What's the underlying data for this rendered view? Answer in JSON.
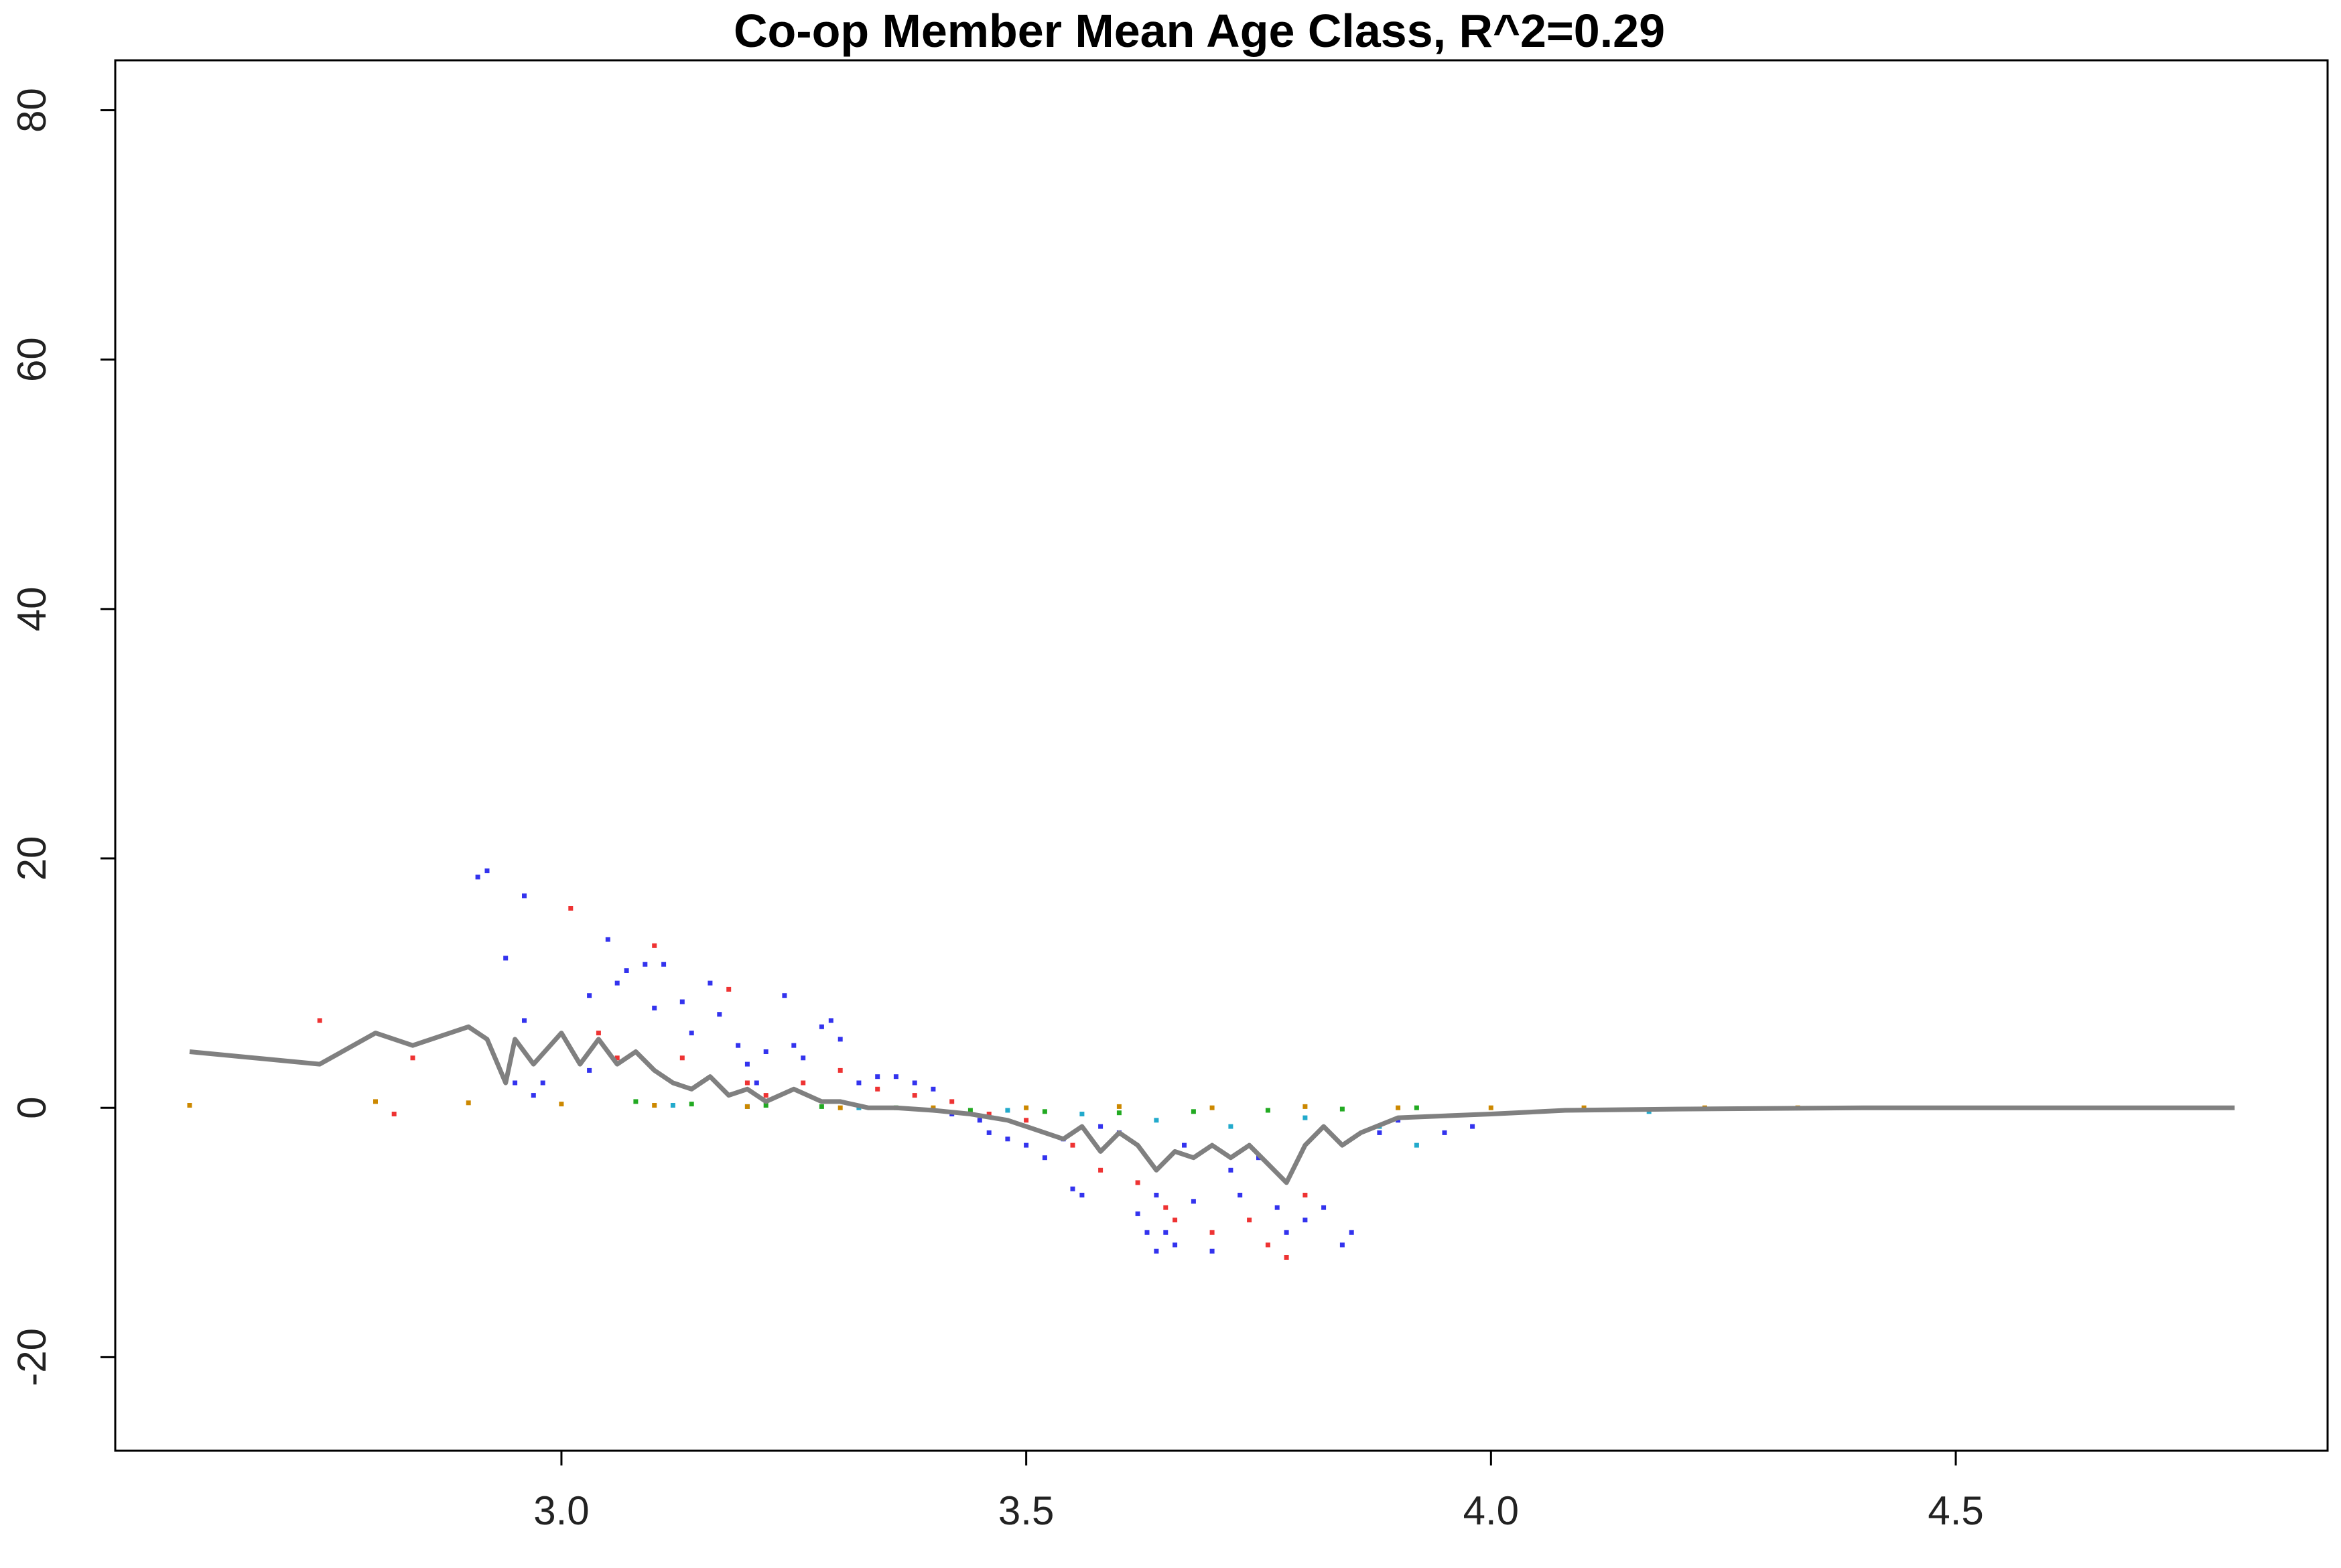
{
  "chart_data": {
    "type": "scatter",
    "title": "Co-op Member Mean Age Class, R^2=0.29",
    "xlabel": "",
    "ylabel": "",
    "xlim": [
      2.52,
      4.9
    ],
    "ylim": [
      -27.5,
      84
    ],
    "x_ticks": [
      3.0,
      3.5,
      4.0,
      4.5
    ],
    "x_tick_labels": [
      "3.0",
      "3.5",
      "4.0",
      "4.5"
    ],
    "y_ticks": [
      -20,
      0,
      20,
      40,
      60,
      80
    ],
    "y_tick_labels": [
      "-20",
      "0",
      "20",
      "40",
      "60",
      "80"
    ],
    "grid": false,
    "legend": "none",
    "trend_line": {
      "color": "#808080",
      "x": [
        2.6,
        2.74,
        2.8,
        2.84,
        2.9,
        2.92,
        2.94,
        2.95,
        2.97,
        3.0,
        3.02,
        3.04,
        3.06,
        3.08,
        3.1,
        3.12,
        3.14,
        3.16,
        3.18,
        3.2,
        3.22,
        3.25,
        3.28,
        3.3,
        3.33,
        3.36,
        3.4,
        3.44,
        3.48,
        3.5,
        3.52,
        3.54,
        3.56,
        3.58,
        3.6,
        3.62,
        3.64,
        3.66,
        3.68,
        3.7,
        3.72,
        3.74,
        3.76,
        3.78,
        3.8,
        3.82,
        3.84,
        3.86,
        3.9,
        4.0,
        4.08,
        4.2,
        4.4,
        4.6,
        4.8
      ],
      "y": [
        4.5,
        3.5,
        6.0,
        5.0,
        6.5,
        5.5,
        2.0,
        5.5,
        3.5,
        6.0,
        3.5,
        5.5,
        3.5,
        4.5,
        3.0,
        2.0,
        1.5,
        2.5,
        1.0,
        1.5,
        0.5,
        1.5,
        0.5,
        0.5,
        0.0,
        0.0,
        -0.2,
        -0.5,
        -1.0,
        -1.5,
        -2.0,
        -2.5,
        -1.5,
        -3.5,
        -2.0,
        -3.0,
        -5.0,
        -3.5,
        -4.0,
        -3.0,
        -4.0,
        -3.0,
        -4.5,
        -6.0,
        -3.0,
        -1.5,
        -3.0,
        -2.0,
        -0.8,
        -0.5,
        -0.2,
        -0.1,
        0.0,
        0.0,
        0.0
      ]
    },
    "series": [
      {
        "color": "#3333ee",
        "x": [
          2.91,
          2.92,
          2.94,
          2.96,
          2.96,
          2.98,
          2.95,
          2.97,
          3.03,
          3.03,
          3.05,
          3.06,
          3.07,
          3.09,
          3.1,
          3.11,
          3.13,
          3.14,
          3.16,
          3.17,
          3.19,
          3.2,
          3.21,
          3.22,
          3.24,
          3.25,
          3.26,
          3.28,
          3.29,
          3.3,
          3.32,
          3.34,
          3.36,
          3.38,
          3.4,
          3.42,
          3.45,
          3.46,
          3.48,
          3.5,
          3.52,
          3.54,
          3.55,
          3.56,
          3.58,
          3.6,
          3.62,
          3.63,
          3.64,
          3.64,
          3.65,
          3.66,
          3.67,
          3.68,
          3.7,
          3.72,
          3.73,
          3.75,
          3.77,
          3.78,
          3.8,
          3.82,
          3.84,
          3.85,
          3.88,
          3.9,
          3.95,
          3.98
        ],
        "y": [
          18.5,
          19.0,
          12.0,
          7.0,
          17.0,
          2.0,
          2.0,
          1.0,
          3.0,
          9.0,
          13.5,
          10.0,
          11.0,
          11.5,
          8.0,
          11.5,
          8.5,
          6.0,
          10.0,
          7.5,
          5.0,
          3.5,
          2.0,
          4.5,
          9.0,
          5.0,
          4.0,
          6.5,
          7.0,
          5.5,
          2.0,
          2.5,
          2.5,
          2.0,
          1.5,
          -0.5,
          -1.0,
          -2.0,
          -2.5,
          -3.0,
          -4.0,
          -2.5,
          -6.5,
          -7.0,
          -1.5,
          -2.0,
          -8.5,
          -10.0,
          -11.5,
          -7.0,
          -10.0,
          -11.0,
          -3.0,
          -7.5,
          -11.5,
          -5.0,
          -7.0,
          -4.0,
          -8.0,
          -10.0,
          -9.0,
          -8.0,
          -11.0,
          -10.0,
          -2.0,
          -1.0,
          -2.0,
          -1.5
        ]
      },
      {
        "color": "#ee3333",
        "x": [
          2.74,
          2.82,
          2.84,
          3.01,
          3.04,
          3.06,
          3.1,
          3.13,
          3.18,
          3.2,
          3.22,
          3.26,
          3.3,
          3.34,
          3.38,
          3.42,
          3.46,
          3.5,
          3.55,
          3.58,
          3.62,
          3.65,
          3.7,
          3.74,
          3.76,
          3.78,
          3.8,
          3.66
        ],
        "y": [
          7.0,
          -0.5,
          4.0,
          16.0,
          6.0,
          4.0,
          13.0,
          4.0,
          9.5,
          2.0,
          1.0,
          2.0,
          3.0,
          1.5,
          1.0,
          0.5,
          -0.5,
          -1.0,
          -3.0,
          -5.0,
          -6.0,
          -8.0,
          -10.0,
          -9.0,
          -11.0,
          -12.0,
          -7.0,
          -9.0
        ]
      },
      {
        "color": "#22aa22",
        "x": [
          3.08,
          3.14,
          3.22,
          3.28,
          3.36,
          3.44,
          3.52,
          3.6,
          3.68,
          3.76,
          3.84,
          3.92
        ],
        "y": [
          0.5,
          0.3,
          0.2,
          0.1,
          0.0,
          -0.2,
          -0.3,
          -0.4,
          -0.3,
          -0.2,
          -0.1,
          0.0
        ]
      },
      {
        "color": "#22aacc",
        "x": [
          3.12,
          3.2,
          3.32,
          3.4,
          3.48,
          3.56,
          3.64,
          3.72,
          3.8,
          3.88,
          3.92,
          4.17
        ],
        "y": [
          0.2,
          0.1,
          0.0,
          -0.1,
          -0.2,
          -0.5,
          -1.0,
          -1.5,
          -0.8,
          -1.5,
          -3.0,
          -0.3
        ]
      },
      {
        "color": "#cc8800",
        "x": [
          2.6,
          2.8,
          2.9,
          3.0,
          3.1,
          3.2,
          3.3,
          3.4,
          3.5,
          3.6,
          3.7,
          3.8,
          3.9,
          4.0,
          4.1,
          4.23,
          4.33
        ],
        "y": [
          0.2,
          0.5,
          0.4,
          0.3,
          0.2,
          0.1,
          0.0,
          0.0,
          0.0,
          0.1,
          0.0,
          0.1,
          0.0,
          0.0,
          0.0,
          0.0,
          0.0
        ]
      }
    ]
  }
}
